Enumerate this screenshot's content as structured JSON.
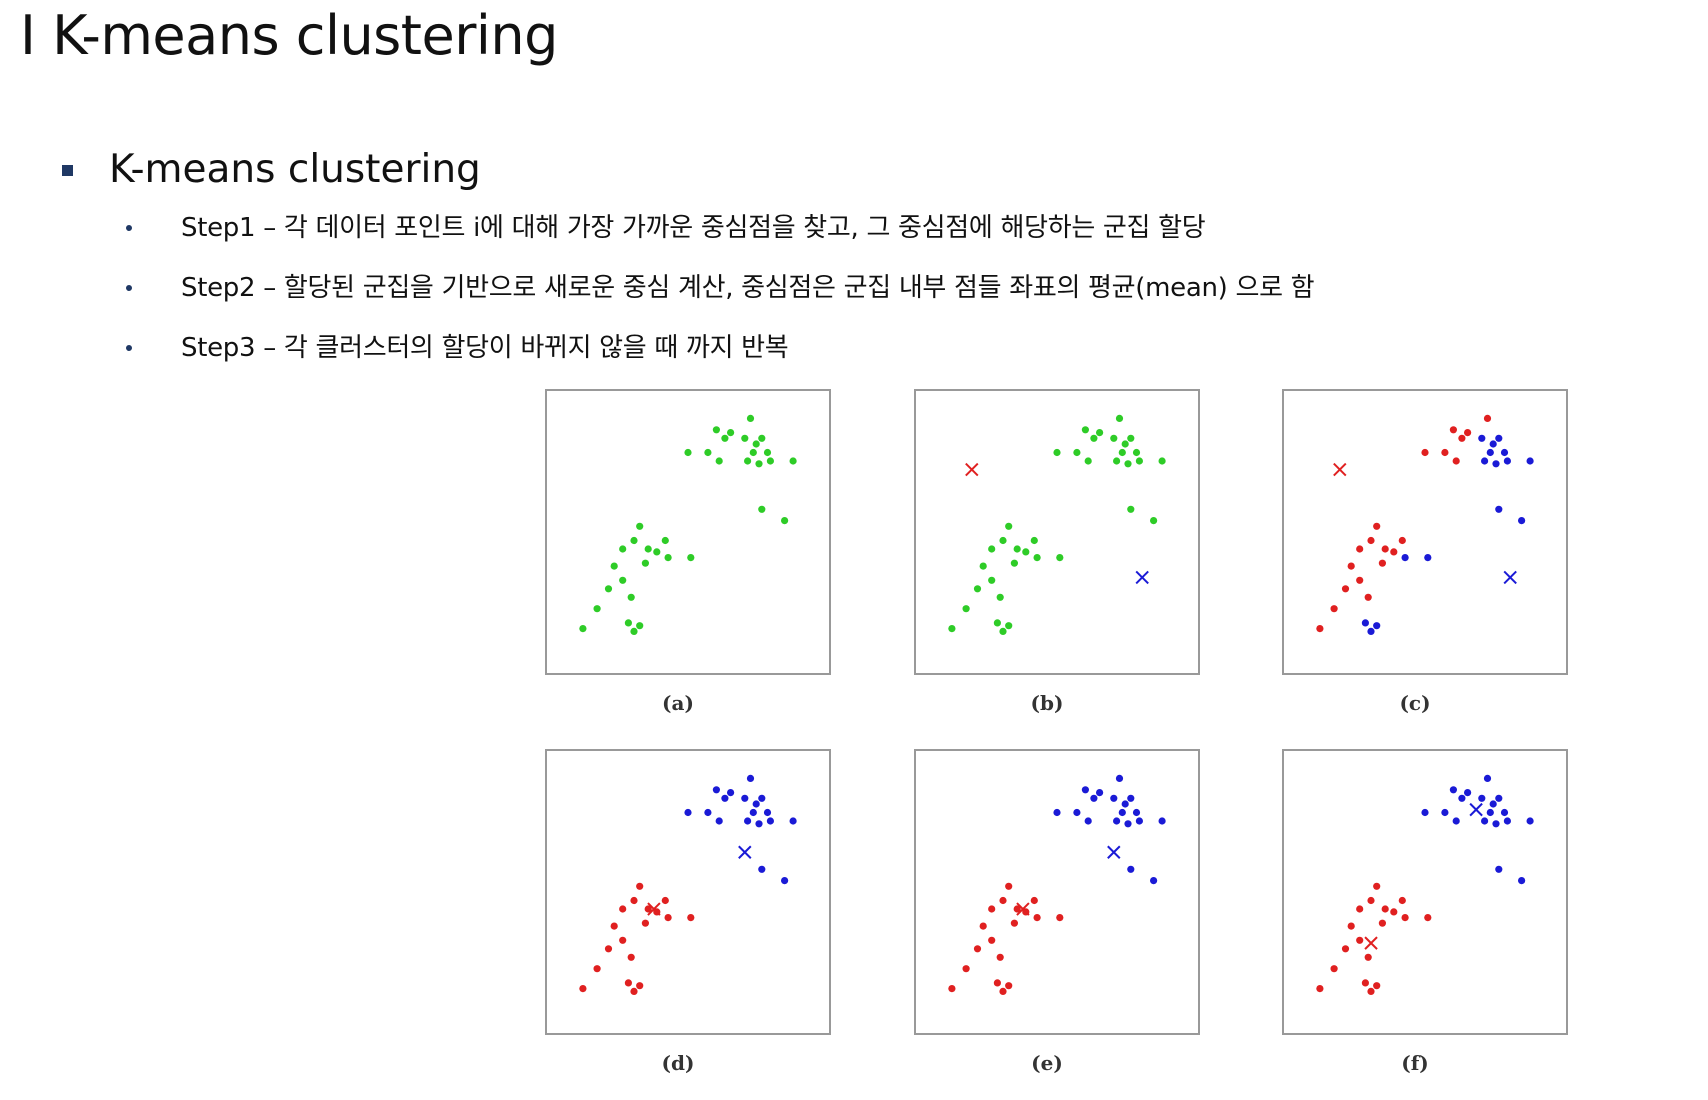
{
  "slide": {
    "title": "I K-means clustering",
    "section_title": "K-means clustering",
    "steps": [
      "Step1 – 각 데이터 포인트 i에 대해 가장 가까운 중심점을 찾고, 그 중심점에 해당하는 군집 할당",
      "Step2 – 할당된 군집을 기반으로 새로운 중심 계산, 중심점은 군집 내부 점들 좌표의 평균(mean) 으로 함",
      "Step3 – 각 클러스터의 할당이 바뀌지 않을 때 까지 반복"
    ]
  },
  "colors": {
    "unassigned": "#2ecc27",
    "cluster_red": "#e02020",
    "cluster_blue": "#1a1ad6",
    "panel_border": "#999999",
    "bullet": "#1f3864"
  },
  "chart_data": {
    "type": "scatter",
    "points": [
      [
        0.5,
        0.78
      ],
      [
        0.57,
        0.78
      ],
      [
        0.6,
        0.86
      ],
      [
        0.63,
        0.83
      ],
      [
        0.65,
        0.85
      ],
      [
        0.61,
        0.75
      ],
      [
        0.7,
        0.83
      ],
      [
        0.72,
        0.9
      ],
      [
        0.74,
        0.81
      ],
      [
        0.73,
        0.78
      ],
      [
        0.71,
        0.75
      ],
      [
        0.75,
        0.74
      ],
      [
        0.78,
        0.78
      ],
      [
        0.76,
        0.83
      ],
      [
        0.79,
        0.75
      ],
      [
        0.87,
        0.75
      ],
      [
        0.76,
        0.58
      ],
      [
        0.84,
        0.54
      ],
      [
        0.13,
        0.16
      ],
      [
        0.18,
        0.23
      ],
      [
        0.22,
        0.3
      ],
      [
        0.24,
        0.38
      ],
      [
        0.27,
        0.44
      ],
      [
        0.31,
        0.47
      ],
      [
        0.33,
        0.52
      ],
      [
        0.27,
        0.33
      ],
      [
        0.3,
        0.27
      ],
      [
        0.35,
        0.39
      ],
      [
        0.39,
        0.43
      ],
      [
        0.43,
        0.41
      ],
      [
        0.42,
        0.47
      ],
      [
        0.51,
        0.41
      ],
      [
        0.29,
        0.18
      ],
      [
        0.31,
        0.15
      ],
      [
        0.33,
        0.17
      ],
      [
        0.36,
        0.44
      ]
    ],
    "panels": [
      {
        "label": "(a)",
        "assignment": "none",
        "centroids": []
      },
      {
        "label": "(b)",
        "assignment": "none",
        "centroids": [
          {
            "cluster": "red",
            "x": 0.2,
            "y": 0.72
          },
          {
            "cluster": "blue",
            "x": 0.8,
            "y": 0.34
          }
        ]
      },
      {
        "label": "(c)",
        "assignment": "nearest",
        "centroids": [
          {
            "cluster": "red",
            "x": 0.2,
            "y": 0.72
          },
          {
            "cluster": "blue",
            "x": 0.8,
            "y": 0.34
          }
        ]
      },
      {
        "label": "(d)",
        "assignment": "nearest",
        "centroids": [
          {
            "cluster": "red",
            "x": 0.38,
            "y": 0.44
          },
          {
            "cluster": "blue",
            "x": 0.7,
            "y": 0.64
          }
        ]
      },
      {
        "label": "(e)",
        "assignment": "nearest",
        "centroids": [
          {
            "cluster": "red",
            "x": 0.38,
            "y": 0.44
          },
          {
            "cluster": "blue",
            "x": 0.7,
            "y": 0.64
          }
        ]
      },
      {
        "label": "(f)",
        "assignment": "nearest",
        "centroids": [
          {
            "cluster": "red",
            "x": 0.31,
            "y": 0.32
          },
          {
            "cluster": "blue",
            "x": 0.68,
            "y": 0.79
          }
        ]
      }
    ]
  }
}
